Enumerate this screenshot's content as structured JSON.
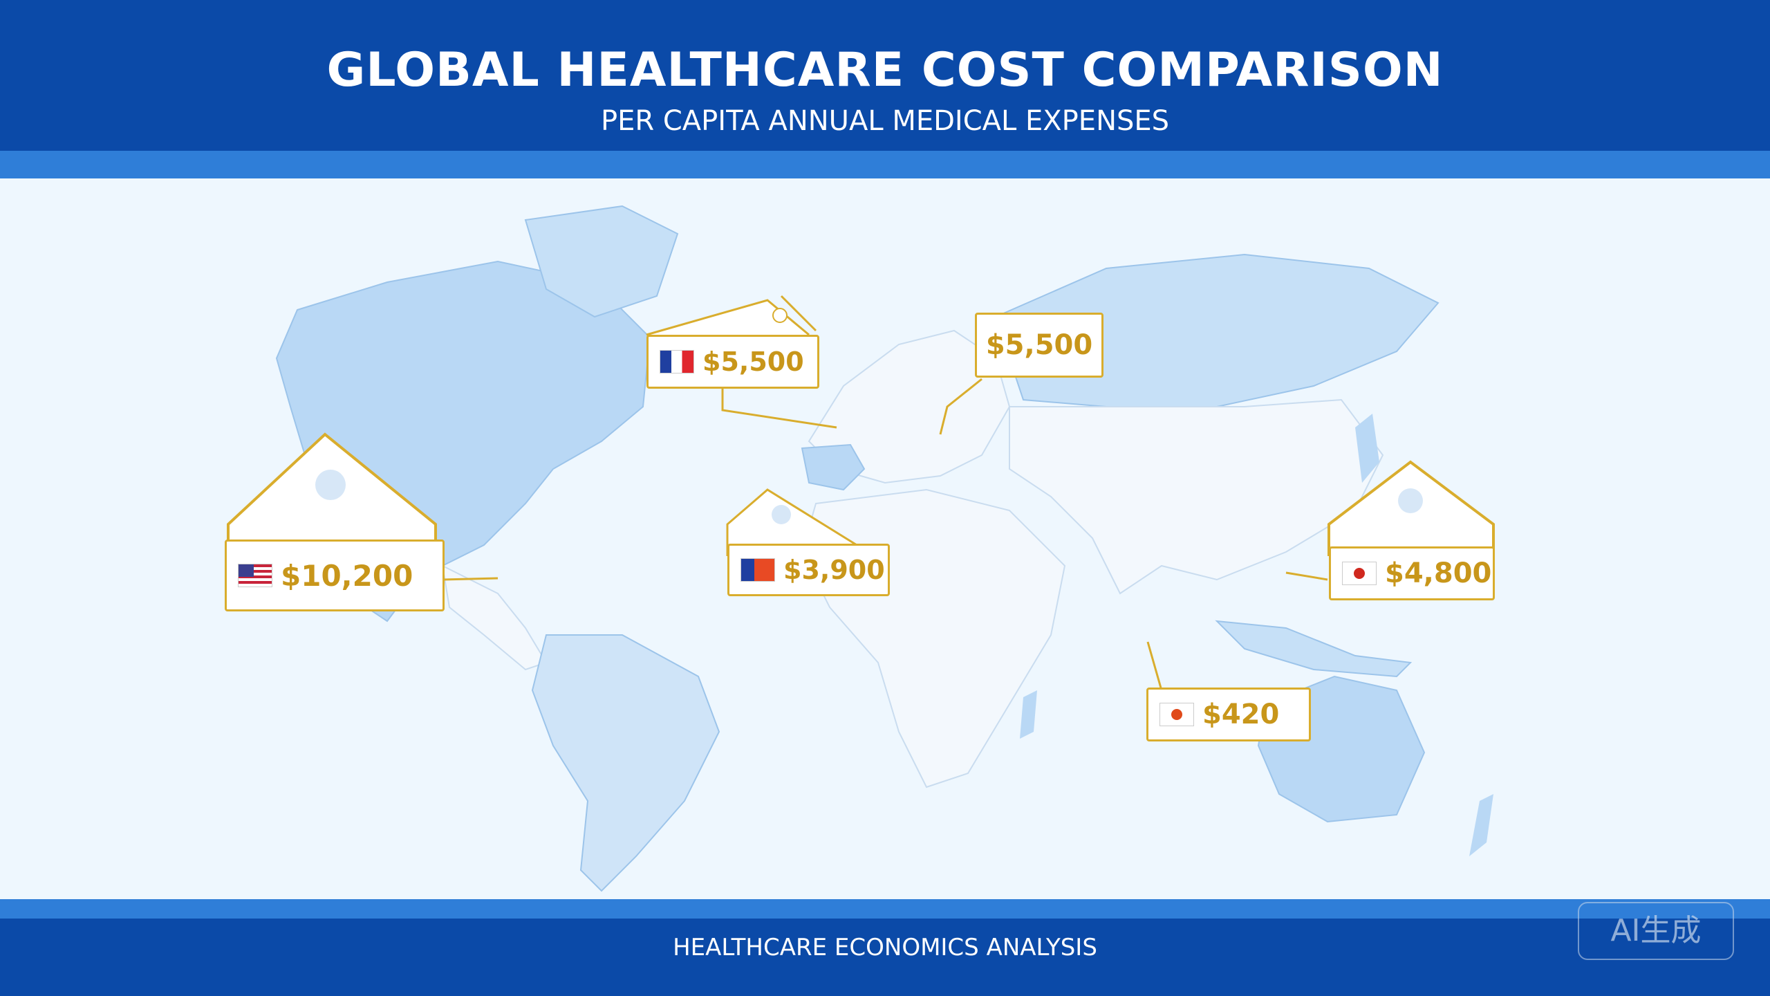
{
  "header": {
    "title": "GLOBAL HEALTHCARE COST COMPARISON",
    "subtitle": "PER CAPITA ANNUAL MEDICAL EXPENSES"
  },
  "footer": {
    "text": "HEALTHCARE ECONOMICS ANALYSIS"
  },
  "watermark": "AI生成",
  "colors": {
    "header": "#0b4aa8",
    "band": "#2f7ed8",
    "ocean": "#eef7fe",
    "land_highlight": "#b9d8f5",
    "land_neutral": "#f3f8fd",
    "label_border": "#d9ad2d",
    "label_text": "#c8961a"
  },
  "markers": [
    {
      "id": "usa",
      "flag_icon": "us-flag-icon",
      "value": "$10,200"
    },
    {
      "id": "france",
      "flag_icon": "france-flag-icon",
      "value": "$5,500"
    },
    {
      "id": "europe-east",
      "flag_icon": "",
      "value": "$5,500"
    },
    {
      "id": "africa",
      "flag_icon": "flag-icon",
      "value": "$3,900"
    },
    {
      "id": "asia-east",
      "flag_icon": "japan-flag-icon",
      "value": "$4,800"
    },
    {
      "id": "south-asia",
      "flag_icon": "flag-icon",
      "value": "$420"
    }
  ]
}
